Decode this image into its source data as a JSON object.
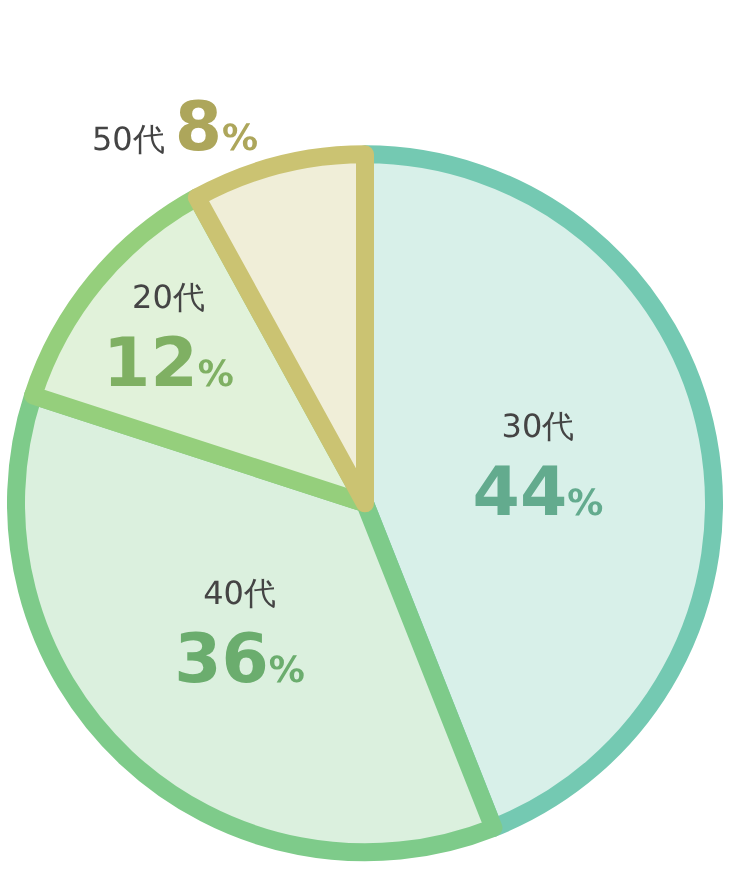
{
  "chart_data": {
    "type": "pie",
    "categories": [
      "30代",
      "40代",
      "20代",
      "50代"
    ],
    "values": [
      44,
      36,
      12,
      8
    ],
    "colors": [
      "#74c9b2",
      "#7ecb8a",
      "#95cf7c",
      "#cbc372"
    ],
    "value_labels": [
      "44%",
      "36%",
      "12%",
      "8%"
    ],
    "legend": false
  }
}
